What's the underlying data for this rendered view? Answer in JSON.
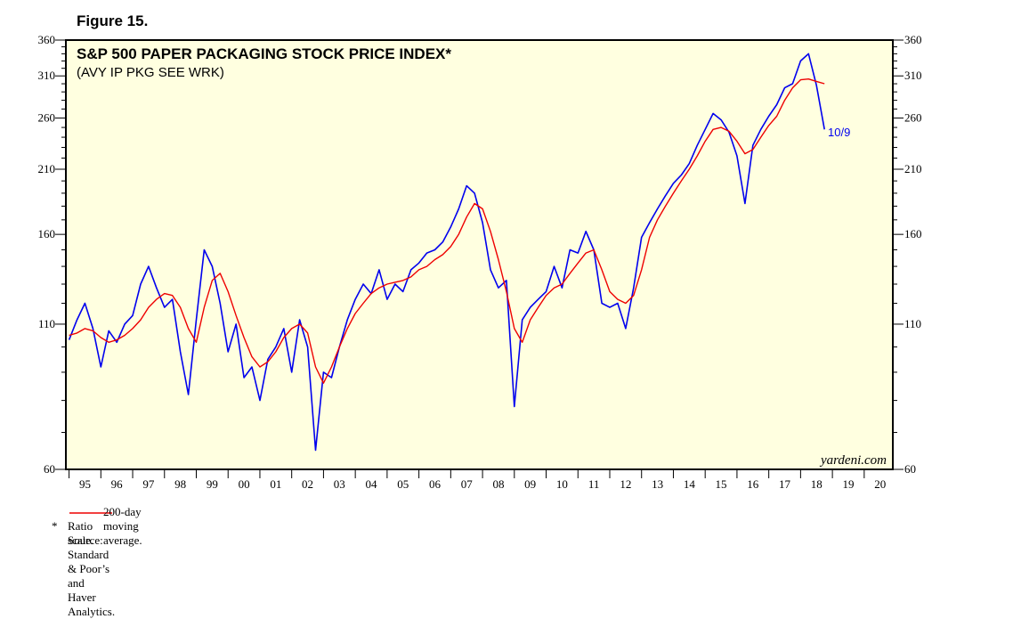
{
  "figure_label": "Figure 15.",
  "chart_data": {
    "type": "line",
    "title": "S&P 500 PAPER PACKAGING STOCK PRICE INDEX*",
    "subtitle": "(AVY IP PKG SEE WRK)",
    "scale": "log",
    "ylim": [
      60,
      360
    ],
    "yticks": [
      60,
      110,
      160,
      210,
      260,
      310,
      360
    ],
    "ytick_labels": [
      "60",
      "110",
      "160",
      "210",
      "260",
      "310",
      "360"
    ],
    "xlim": [
      1994.9,
      2020.9
    ],
    "x_labels": [
      "95",
      "96",
      "97",
      "98",
      "99",
      "00",
      "01",
      "02",
      "03",
      "04",
      "05",
      "06",
      "07",
      "08",
      "09",
      "10",
      "11",
      "12",
      "13",
      "14",
      "15",
      "16",
      "17",
      "18",
      "19",
      "20"
    ],
    "last_label": "10/9",
    "watermark": "yardeni.com",
    "colors": {
      "plot_bg": "#ffffe0",
      "index": "#0000ee",
      "ma": "#ee0000",
      "label": "#0000ee"
    },
    "series": [
      {
        "name": "index",
        "x": [
          1995.0,
          1995.25,
          1995.5,
          1995.75,
          1996.0,
          1996.25,
          1996.5,
          1996.75,
          1997.0,
          1997.25,
          1997.5,
          1997.75,
          1998.0,
          1998.25,
          1998.5,
          1998.75,
          1999.0,
          1999.25,
          1999.5,
          1999.75,
          2000.0,
          2000.25,
          2000.5,
          2000.75,
          2001.0,
          2001.25,
          2001.5,
          2001.75,
          2002.0,
          2002.25,
          2002.5,
          2002.75,
          2003.0,
          2003.25,
          2003.5,
          2003.75,
          2004.0,
          2004.25,
          2004.5,
          2004.75,
          2005.0,
          2005.25,
          2005.5,
          2005.75,
          2006.0,
          2006.25,
          2006.5,
          2006.75,
          2007.0,
          2007.25,
          2007.5,
          2007.75,
          2008.0,
          2008.25,
          2008.5,
          2008.75,
          2009.0,
          2009.25,
          2009.5,
          2009.75,
          2010.0,
          2010.25,
          2010.5,
          2010.75,
          2011.0,
          2011.25,
          2011.5,
          2011.75,
          2012.0,
          2012.25,
          2012.5,
          2012.75,
          2013.0,
          2013.25,
          2013.5,
          2013.75,
          2014.0,
          2014.25,
          2014.5,
          2014.75,
          2015.0,
          2015.25,
          2015.5,
          2015.75,
          2016.0,
          2016.25,
          2016.5,
          2016.75,
          2017.0,
          2017.25,
          2017.5,
          2017.75,
          2018.0,
          2018.25,
          2018.5,
          2018.75
        ],
        "values": [
          103,
          112,
          120,
          108,
          92,
          107,
          102,
          110,
          114,
          130,
          140,
          128,
          118,
          122,
          98,
          82,
          112,
          150,
          140,
          120,
          98,
          110,
          88,
          92,
          80,
          95,
          100,
          108,
          90,
          112,
          100,
          65,
          90,
          88,
          100,
          112,
          122,
          130,
          125,
          138,
          122,
          130,
          126,
          138,
          142,
          148,
          150,
          155,
          165,
          178,
          196,
          190,
          168,
          138,
          128,
          132,
          78,
          112,
          118,
          122,
          126,
          140,
          128,
          150,
          148,
          162,
          150,
          120,
          118,
          120,
          108,
          128,
          158,
          168,
          178,
          188,
          198,
          205,
          215,
          232,
          248,
          265,
          258,
          245,
          222,
          182,
          232,
          248,
          262,
          275,
          295,
          300,
          330,
          340,
          298,
          248
        ]
      },
      {
        "name": "200-day moving average",
        "x": [
          1995.0,
          1995.25,
          1995.5,
          1995.75,
          1996.0,
          1996.25,
          1996.5,
          1996.75,
          1997.0,
          1997.25,
          1997.5,
          1997.75,
          1998.0,
          1998.25,
          1998.5,
          1998.75,
          1999.0,
          1999.25,
          1999.5,
          1999.75,
          2000.0,
          2000.25,
          2000.5,
          2000.75,
          2001.0,
          2001.25,
          2001.5,
          2001.75,
          2002.0,
          2002.25,
          2002.5,
          2002.75,
          2003.0,
          2003.25,
          2003.5,
          2003.75,
          2004.0,
          2004.25,
          2004.5,
          2004.75,
          2005.0,
          2005.25,
          2005.5,
          2005.75,
          2006.0,
          2006.25,
          2006.5,
          2006.75,
          2007.0,
          2007.25,
          2007.5,
          2007.75,
          2008.0,
          2008.25,
          2008.5,
          2008.75,
          2009.0,
          2009.25,
          2009.5,
          2009.75,
          2010.0,
          2010.25,
          2010.5,
          2010.75,
          2011.0,
          2011.25,
          2011.5,
          2011.75,
          2012.0,
          2012.25,
          2012.5,
          2012.75,
          2013.0,
          2013.25,
          2013.5,
          2013.75,
          2014.0,
          2014.25,
          2014.5,
          2014.75,
          2015.0,
          2015.25,
          2015.5,
          2015.75,
          2016.0,
          2016.25,
          2016.5,
          2016.75,
          2017.0,
          2017.25,
          2017.5,
          2017.75,
          2018.0,
          2018.25,
          2018.5,
          2018.75
        ],
        "values": [
          105,
          106,
          108,
          107,
          104,
          102,
          103,
          105,
          108,
          112,
          118,
          122,
          125,
          124,
          118,
          108,
          102,
          118,
          132,
          136,
          126,
          114,
          104,
          96,
          92,
          94,
          98,
          104,
          108,
          110,
          106,
          92,
          86,
          92,
          100,
          108,
          115,
          120,
          125,
          128,
          130,
          131,
          132,
          134,
          138,
          140,
          144,
          147,
          152,
          160,
          172,
          182,
          178,
          162,
          144,
          126,
          108,
          102,
          112,
          118,
          124,
          128,
          130,
          136,
          142,
          148,
          150,
          138,
          126,
          122,
          120,
          124,
          138,
          158,
          170,
          180,
          190,
          200,
          210,
          222,
          236,
          248,
          250,
          246,
          236,
          224,
          228,
          240,
          252,
          262,
          280,
          295,
          305,
          306,
          303,
          300
        ]
      }
    ],
    "legend": [
      {
        "label": "200-day moving average.",
        "color": "#ee0000"
      }
    ],
    "footnotes": {
      "star": "*",
      "ratio": "Ratio scale.",
      "source": "Source: Standard & Poor’s and Haver Analytics."
    }
  }
}
